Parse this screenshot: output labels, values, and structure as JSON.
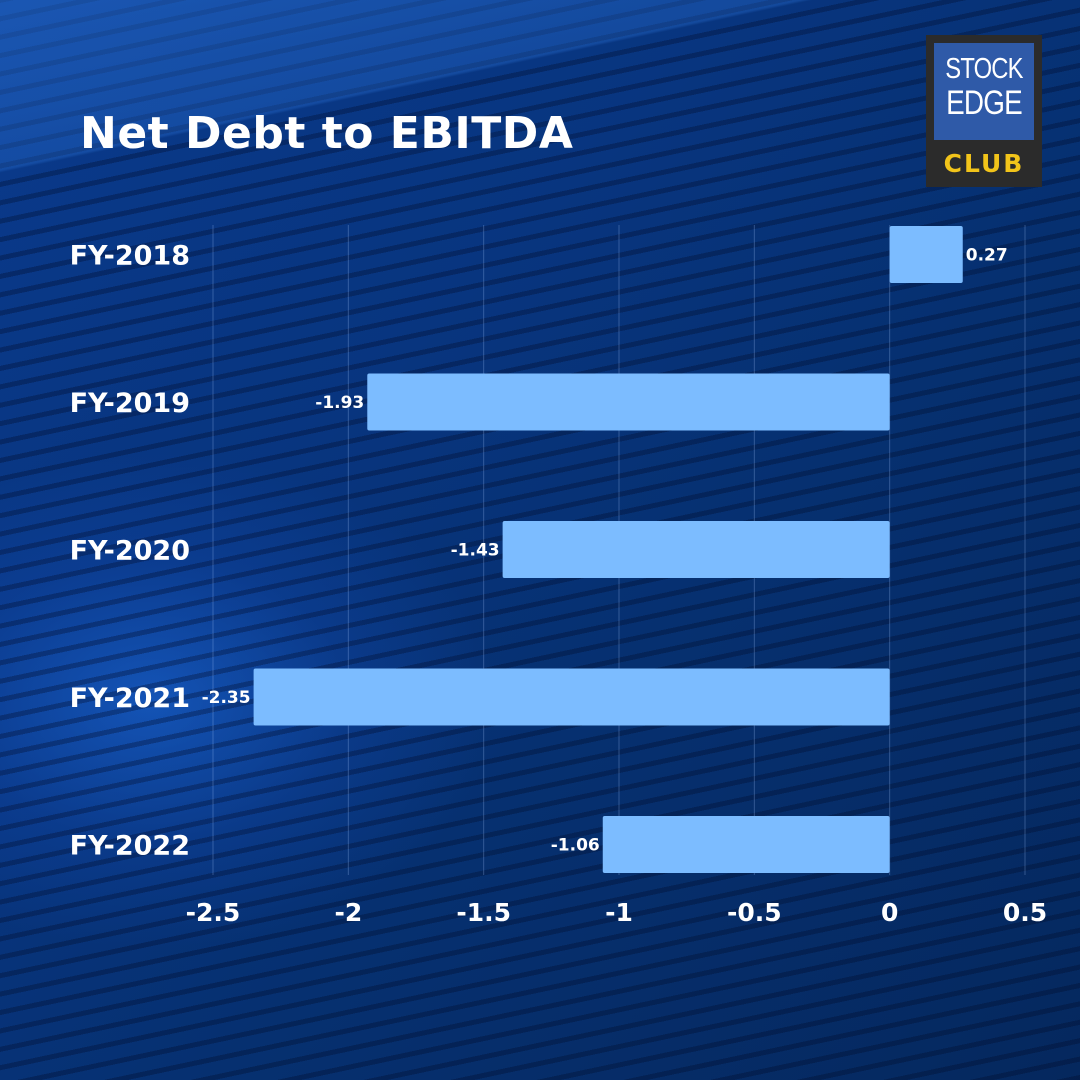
{
  "header": {
    "title": "Net Debt to EBITDA"
  },
  "logo": {
    "line1": "STOCK",
    "line2": "EDGE",
    "line3": "CLUB"
  },
  "colors": {
    "bar": "#7cbcff",
    "logo_accent": "#f2c41a",
    "logo_box": "#2f5aa8"
  },
  "chart_data": {
    "type": "bar",
    "orientation": "horizontal",
    "title": "Net Debt to EBITDA",
    "xlabel": "",
    "ylabel": "",
    "categories": [
      "FY-2018",
      "FY-2019",
      "FY-2020",
      "FY-2021",
      "FY-2022"
    ],
    "values": [
      0.27,
      -1.93,
      -1.43,
      -2.35,
      -1.06
    ],
    "data_labels": [
      "0.27",
      "-1.93",
      "-1.43",
      "-2.35",
      "-1.06"
    ],
    "xlim": [
      -2.5,
      0.5
    ],
    "x_ticks": [
      -2.5,
      -2,
      -1.5,
      -1,
      -0.5,
      0,
      0.5
    ],
    "x_tick_labels": [
      "-2.5",
      "-2",
      "-1.5",
      "-1",
      "-0.5",
      "0",
      "0.5"
    ],
    "grid": true,
    "legend": "none"
  }
}
